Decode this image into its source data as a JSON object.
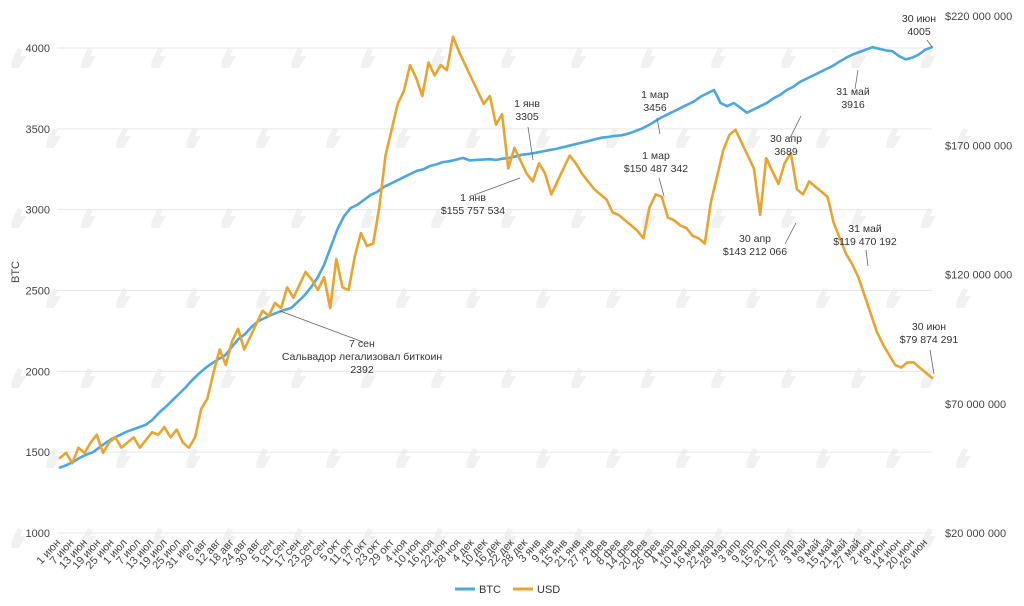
{
  "chart_data": {
    "type": "line",
    "title": "",
    "ylabel": "BTC",
    "ylim_left": [
      1000,
      4000
    ],
    "yticks_left": [
      "1000",
      "1500",
      "2000",
      "2500",
      "3000",
      "3500",
      "4000"
    ],
    "ylim_right_usd": [
      20000000,
      220000000
    ],
    "yticks_right": [
      "$20 000 000",
      "$70 000 000",
      "$120 000 000",
      "$170 000 000",
      "$220 000 000"
    ],
    "x_labels": [
      "1 июн",
      "7 июн",
      "13 июн",
      "19 июн",
      "25 июн",
      "1 июл",
      "7 июл",
      "13 июл",
      "19 июл",
      "25 июл",
      "31 июл",
      "6 авг",
      "12 авг",
      "18 авг",
      "24 авг",
      "30 авг",
      "5 сен",
      "11 сен",
      "17 сен",
      "23 сен",
      "29 сен",
      "5 окт",
      "11 окт",
      "17 окт",
      "23 окт",
      "29 окт",
      "4 ноя",
      "10 ноя",
      "16 ноя",
      "22 ноя",
      "28 ноя",
      "4 дек",
      "10 дек",
      "16 дек",
      "22 дек",
      "28 дек",
      "3 янв",
      "9 янв",
      "15 янв",
      "21 янв",
      "27 янв",
      "2 фев",
      "8 фев",
      "14 фев",
      "20 фев",
      "26 фев",
      "4 мар",
      "10 мар",
      "16 мар",
      "22 мар",
      "28 мар",
      "3 апр",
      "9 апр",
      "15 апр",
      "21 апр",
      "27 апр",
      "3 май",
      "9 май",
      "15 май",
      "21 май",
      "27 май",
      "2 июн",
      "8 июн",
      "14 июн",
      "20 июн",
      "26 июн"
    ],
    "series": [
      {
        "name": "BTC",
        "axis": "left",
        "color": "#4da6dd",
        "values": [
          1405,
          1420,
          1440,
          1465,
          1485,
          1500,
          1530,
          1560,
          1585,
          1605,
          1625,
          1640,
          1655,
          1670,
          1700,
          1745,
          1780,
          1820,
          1860,
          1900,
          1945,
          1985,
          2020,
          2050,
          2075,
          2100,
          2150,
          2200,
          2230,
          2275,
          2310,
          2330,
          2350,
          2365,
          2380,
          2392,
          2430,
          2470,
          2520,
          2580,
          2660,
          2770,
          2880,
          2960,
          3010,
          3030,
          3060,
          3090,
          3110,
          3140,
          3160,
          3180,
          3200,
          3220,
          3240,
          3250,
          3270,
          3280,
          3295,
          3300,
          3310,
          3320,
          3305,
          3308,
          3310,
          3312,
          3308,
          3315,
          3320,
          3330,
          3340,
          3345,
          3352,
          3360,
          3368,
          3375,
          3385,
          3395,
          3405,
          3415,
          3425,
          3435,
          3445,
          3450,
          3456,
          3460,
          3470,
          3485,
          3500,
          3520,
          3545,
          3570,
          3590,
          3610,
          3630,
          3650,
          3670,
          3700,
          3720,
          3740,
          3660,
          3640,
          3660,
          3630,
          3600,
          3620,
          3640,
          3660,
          3689,
          3710,
          3740,
          3760,
          3790,
          3810,
          3830,
          3850,
          3870,
          3890,
          3916,
          3940,
          3960,
          3975,
          3990,
          4005,
          3995,
          3985,
          3980,
          3950,
          3930,
          3940,
          3960,
          3990,
          4005
        ]
      },
      {
        "name": "USD",
        "axis": "right",
        "color": "#e8a430",
        "values": [
          49,
          51,
          47,
          53,
          51,
          55,
          58,
          51,
          55,
          57,
          53,
          55,
          57,
          53,
          56,
          59,
          58,
          61,
          57,
          60,
          55,
          53,
          57,
          68,
          72,
          82,
          91,
          85,
          94,
          99,
          91,
          96,
          101,
          106,
          104,
          109,
          107,
          115,
          111,
          116,
          121,
          118,
          114,
          119,
          107,
          126,
          115,
          114,
          127,
          136,
          131,
          132,
          146,
          166,
          176,
          186,
          191,
          201,
          196,
          189,
          202,
          197,
          201,
          199,
          212,
          206,
          201,
          196,
          191,
          186,
          189,
          178,
          182,
          161,
          169,
          164,
          159,
          156,
          163,
          159,
          151,
          156,
          161,
          166,
          163,
          159,
          156,
          153,
          151,
          149,
          144,
          143,
          141,
          139,
          137,
          134,
          146,
          151,
          150,
          142,
          141,
          139,
          138,
          135,
          134,
          132,
          148,
          158,
          168,
          174,
          176,
          171,
          166,
          161,
          143,
          165,
          160,
          155,
          163,
          167,
          153,
          151,
          156,
          154,
          152,
          150,
          140,
          134,
          128,
          124,
          119,
          112,
          105,
          98,
          93,
          89,
          85,
          84,
          86,
          86,
          84,
          82,
          80
        ]
      }
    ],
    "annotations": [
      {
        "lines": [
          "7 сен",
          "Сальвадор легализовал биткоин",
          "2392"
        ],
        "series": "BTC",
        "value": 2392
      },
      {
        "lines": [
          "1 янв",
          "3305"
        ],
        "series": "BTC",
        "value": 3305
      },
      {
        "lines": [
          "1 янв",
          "$155 757 534"
        ],
        "series": "USD",
        "value": 155757534
      },
      {
        "lines": [
          "1 мар",
          "3456"
        ],
        "series": "BTC",
        "value": 3456
      },
      {
        "lines": [
          "1 мар",
          "$150 487 342"
        ],
        "series": "USD",
        "value": 150487342
      },
      {
        "lines": [
          "30 апр",
          "$143 212 066"
        ],
        "series": "USD",
        "value": 143212066
      },
      {
        "lines": [
          "30 апр",
          "3689"
        ],
        "series": "BTC",
        "value": 3689
      },
      {
        "lines": [
          "31 май",
          "$119 470 192"
        ],
        "series": "USD",
        "value": 119470192
      },
      {
        "lines": [
          "31 май",
          "3916"
        ],
        "series": "BTC",
        "value": 3916
      },
      {
        "lines": [
          "30 июн",
          "4005"
        ],
        "series": "BTC",
        "value": 4005
      },
      {
        "lines": [
          "30 июн",
          "$79 874 291"
        ],
        "series": "USD",
        "value": 79874291
      }
    ],
    "legend": {
      "position": "bottom",
      "items": [
        "BTC",
        "USD"
      ]
    },
    "grid": true
  }
}
